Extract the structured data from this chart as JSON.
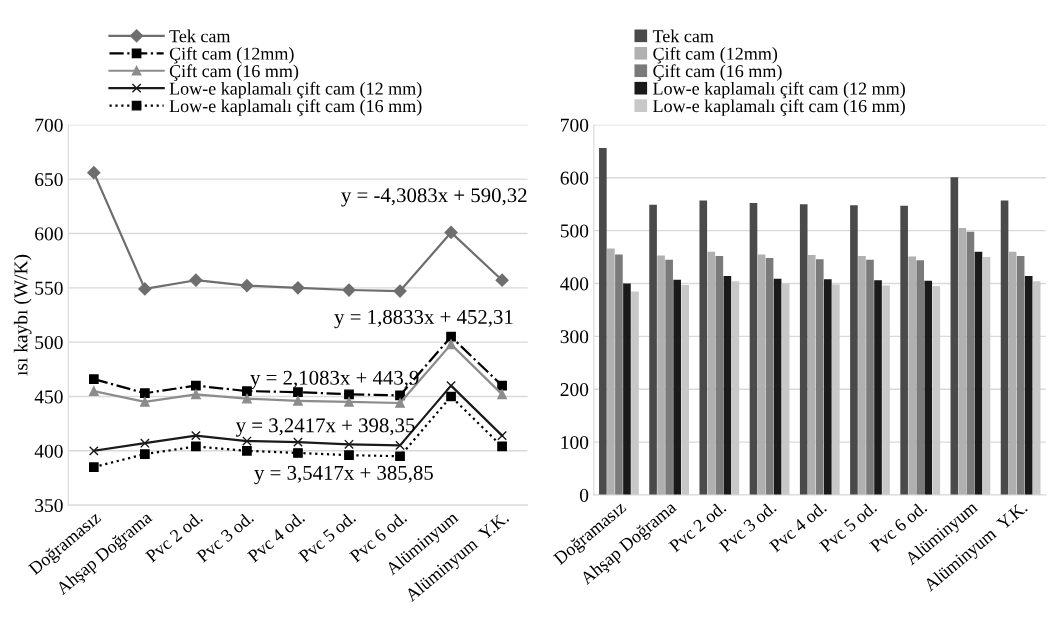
{
  "chart_data": [
    {
      "type": "line",
      "ylabel": "ısı kaybı (W/K)",
      "categories": [
        "Doğramasız",
        "Ahşap Doğrama",
        "Pvc 2 od.",
        "Pvc 3 od.",
        "Pvc 4 od.",
        "Pvc 5 od.",
        "Pvc 6 od.",
        "Alüminyum",
        "Alüminyum  Y.K."
      ],
      "series": [
        {
          "name": "Tek cam",
          "color": "#6e6e6e",
          "marker": "diamond",
          "line_style": "solid",
          "values": [
            656,
            549,
            557,
            552,
            550,
            548,
            547,
            601,
            557
          ]
        },
        {
          "name": "Çift cam (12mm)",
          "color": "#000000",
          "marker": "square",
          "line_style": "dashdot",
          "values": [
            466,
            453,
            460,
            455,
            454,
            452,
            451,
            505,
            460
          ]
        },
        {
          "name": "Çift cam (16 mm)",
          "color": "#8c8c8c",
          "marker": "triangle",
          "line_style": "solid",
          "values": [
            455,
            445,
            452,
            448,
            446,
            445,
            444,
            498,
            452
          ]
        },
        {
          "name": "Low-e kaplamalı çift cam (12 mm)",
          "color": "#1a1a1a",
          "marker": "cross",
          "line_style": "solid",
          "values": [
            400,
            407,
            414,
            409,
            408,
            406,
            405,
            460,
            414
          ]
        },
        {
          "name": "Low-e kaplamalı çift cam (16 mm)",
          "color": "#000000",
          "marker": "square",
          "line_style": "dotted",
          "values": [
            385,
            397,
            404,
            400,
            398,
            396,
            395,
            450,
            404
          ]
        }
      ],
      "annotations": [
        "y = -4,3083x + 590,32",
        "y = 1,8833x + 452,31",
        "y = 2,1083x + 443,9",
        "y = 3,2417x + 398,35",
        "y = 3,5417x + 385,85"
      ],
      "ylim": [
        350,
        700
      ],
      "yticks": [
        350,
        400,
        450,
        500,
        550,
        600,
        650,
        700
      ],
      "grid": "y",
      "legend": "top"
    },
    {
      "type": "bar",
      "categories": [
        "Doğramasız",
        "Ahşap Doğrama",
        "Pvc 2 od.",
        "Pvc 3 od.",
        "Pvc 4 od.",
        "Pvc 5 od.",
        "Pvc 6 od.",
        "Alüminyum",
        "Alüminyum  Y.K."
      ],
      "series": [
        {
          "name": "Tek cam",
          "color": "#4a4a4a",
          "values": [
            656,
            549,
            557,
            552,
            550,
            548,
            547,
            601,
            557
          ]
        },
        {
          "name": "Çift cam (12mm)",
          "color": "#b0b0b0",
          "values": [
            466,
            453,
            460,
            455,
            454,
            452,
            451,
            505,
            460
          ]
        },
        {
          "name": "Çift cam (16 mm)",
          "color": "#7a7a7a",
          "values": [
            455,
            445,
            452,
            448,
            446,
            445,
            444,
            498,
            452
          ]
        },
        {
          "name": "Low-e kaplamalı çift cam (12 mm)",
          "color": "#1a1a1a",
          "values": [
            400,
            407,
            414,
            409,
            408,
            406,
            405,
            460,
            414
          ]
        },
        {
          "name": "Low-e kaplamalı çift cam (16 mm)",
          "color": "#c8c8c8",
          "values": [
            385,
            397,
            404,
            400,
            398,
            396,
            395,
            450,
            404
          ]
        }
      ],
      "ylim": [
        0,
        700
      ],
      "yticks": [
        0,
        100,
        200,
        300,
        400,
        500,
        600,
        700
      ],
      "grid": "y",
      "legend": "top"
    }
  ]
}
